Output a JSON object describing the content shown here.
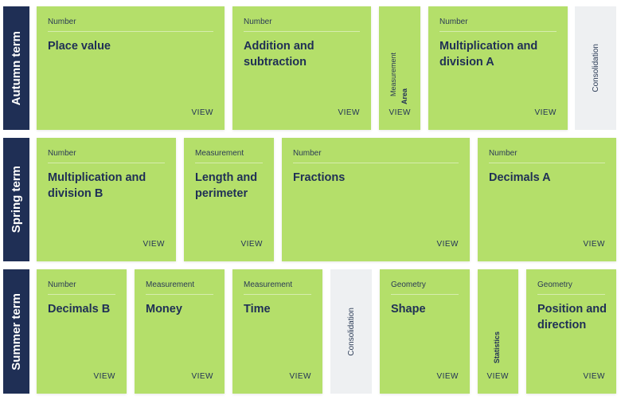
{
  "terms": {
    "autumn": {
      "label": "Autumn term",
      "blocks": [
        {
          "category": "Number",
          "title": "Place value",
          "view": "VIEW"
        },
        {
          "category": "Number",
          "title": "Addition and subtraction",
          "view": "VIEW"
        },
        {
          "category": "Measurement",
          "title": "Area",
          "view": "VIEW"
        },
        {
          "category": "Number",
          "title": "Multiplication and division A",
          "view": "VIEW"
        }
      ],
      "consolidation": "Consolidation"
    },
    "spring": {
      "label": "Spring term",
      "blocks": [
        {
          "category": "Number",
          "title": "Multiplication and division B",
          "view": "VIEW"
        },
        {
          "category": "Measurement",
          "title": "Length and perimeter",
          "view": "VIEW"
        },
        {
          "category": "Number",
          "title": "Fractions",
          "view": "VIEW"
        },
        {
          "category": "Number",
          "title": "Decimals A",
          "view": "VIEW"
        }
      ]
    },
    "summer": {
      "label": "Summer term",
      "blocks": [
        {
          "category": "Number",
          "title": "Decimals B",
          "view": "VIEW"
        },
        {
          "category": "Measurement",
          "title": "Money",
          "view": "VIEW"
        },
        {
          "category": "Measurement",
          "title": "Time",
          "view": "VIEW"
        },
        {
          "category": "Geometry",
          "title": "Shape",
          "view": "VIEW"
        },
        {
          "category": "",
          "title": "Statistics",
          "view": "VIEW"
        },
        {
          "category": "Geometry",
          "title": "Position and direction",
          "view": "VIEW"
        }
      ],
      "consolidation": "Consolidation"
    }
  },
  "colors": {
    "card": "#b4df6a",
    "term_label": "#1f2f55",
    "consolidation": "#eef0f2"
  }
}
